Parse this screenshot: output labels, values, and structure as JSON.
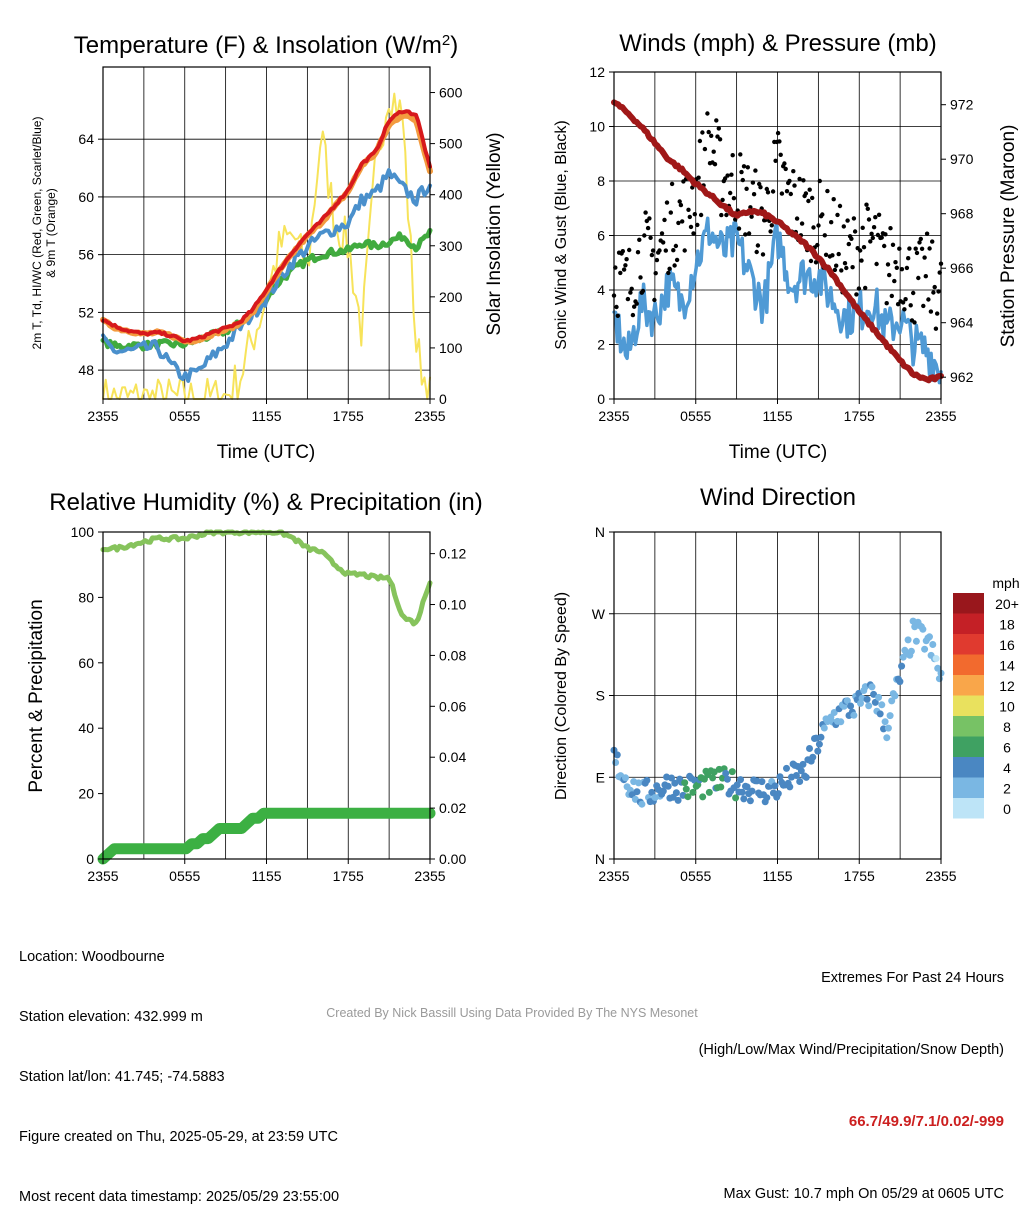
{
  "colors": {
    "temp_red": "#d7191c",
    "dew_green": "#41ab3f",
    "hiwc_scarlet": "#ef6a2b",
    "hiwc_blue": "#4a90cc",
    "temp9m_orange": "#f39b3f",
    "insolation_yellow": "#f7e35a",
    "wind_blue": "#4f9ad5",
    "gust_black": "#000000",
    "pressure_maroon": "#a01818",
    "rh_green": "#86c35c",
    "precip_green": "#3cb043",
    "grid": "#000000",
    "extremes_red": "#cc1f1f"
  },
  "time_ticks": [
    "2355",
    "0555",
    "1155",
    "1755",
    "2355"
  ],
  "panels": {
    "temp": {
      "title": "Temperature (F) & Insolation (W/m²)",
      "ylabel_line1": "2m T, Td, HI/WC (Red, Green, Scarlet/Blue)",
      "ylabel_line2": "& 9m T (Orange)",
      "y2label": "Solar Insolation (Yellow)",
      "xlabel": "Time (UTC)",
      "yticks": [
        "48",
        "52",
        "56",
        "60",
        "64"
      ],
      "y2ticks": [
        "0",
        "100",
        "200",
        "300",
        "400",
        "500",
        "600"
      ]
    },
    "wind": {
      "title": "Winds (mph) & Pressure (mb)",
      "ylabel": "Sonic Wind & Gust (Blue, Black)",
      "y2label": "Station Pressure (Maroon)",
      "xlabel": "Time (UTC)",
      "yticks": [
        "0",
        "2",
        "4",
        "6",
        "8",
        "10",
        "12"
      ],
      "y2ticks": [
        "962",
        "964",
        "966",
        "968",
        "970",
        "972"
      ]
    },
    "rh": {
      "title": "Relative Humidity (%) & Precipitation (in)",
      "ylabel": "Percent & Precipitation",
      "yticks": [
        "0",
        "20",
        "40",
        "60",
        "80",
        "100"
      ],
      "y2ticks": [
        "0.00",
        "0.02",
        "0.04",
        "0.06",
        "0.08",
        "0.10",
        "0.12"
      ]
    },
    "dir": {
      "title": "Wind Direction",
      "ylabel": "Direction (Colored By Speed)",
      "yticks": [
        "N",
        "E",
        "S",
        "W",
        "N"
      ],
      "legend_title": "mph",
      "legend_labels": [
        "20+",
        "18",
        "16",
        "14",
        "12",
        "10",
        "8",
        "6",
        "4",
        "2",
        "0"
      ],
      "legend_colors": [
        "#99171c",
        "#c42026",
        "#e03a2f",
        "#f26a2e",
        "#f9a64a",
        "#e9e15e",
        "#77c265",
        "#3fa162",
        "#4a87c2",
        "#7ab7e3",
        "#bde4f7"
      ]
    }
  },
  "info": {
    "location": "Location: Woodbourne",
    "elevation": "Station elevation: 432.999 m",
    "latlon": "Station lat/lon: 41.745; -74.5883",
    "created": "Figure created on Thu, 2025-05-29, at 23:59 UTC",
    "recent": "Most recent data timestamp: 2025/05/29 23:55:00"
  },
  "extremes": {
    "title": "Extremes For Past 24 Hours",
    "subtitle": "(High/Low/Max Wind/Precipitation/Snow Depth)",
    "values": "66.7/49.9/7.1/0.02/-999",
    "gust": "Max Gust: 10.7 mph On 05/29 at 0605 UTC"
  },
  "credit": "Created By Nick Bassill Using Data Provided By The NYS Mesonet",
  "chart_data": [
    {
      "type": "line",
      "title": "Temperature (F) & Insolation (W/m²)",
      "xlabel": "Time (UTC)",
      "ylabel": "2m T, Td, HI/WC (Red, Green, Scarlet/Blue) & 9m T (Orange)",
      "y2label": "Solar Insolation (Yellow)",
      "x": [
        "2355",
        "0055",
        "0155",
        "0255",
        "0355",
        "0455",
        "0555",
        "0655",
        "0755",
        "0855",
        "0955",
        "1055",
        "1155",
        "1255",
        "1355",
        "1455",
        "1555",
        "1655",
        "1755",
        "1855",
        "1955",
        "2055",
        "2155",
        "2255",
        "2355"
      ],
      "ylim": [
        46,
        69
      ],
      "y2lim": [
        0,
        650
      ],
      "series": [
        {
          "name": "2m T (Red)",
          "axis": "left",
          "values": [
            51.5,
            51.0,
            50.7,
            50.5,
            50.6,
            50.4,
            50.0,
            50.2,
            50.6,
            50.9,
            51.3,
            52.2,
            53.6,
            55.0,
            56.3,
            57.4,
            58.3,
            59.4,
            60.5,
            62.3,
            63.1,
            65.3,
            66.0,
            65.7,
            62.0
          ]
        },
        {
          "name": "2m Td (Green)",
          "axis": "left",
          "values": [
            50.0,
            49.6,
            49.7,
            49.7,
            49.8,
            49.8,
            49.8,
            50.1,
            50.4,
            50.7,
            51.2,
            52.0,
            53.0,
            54.2,
            55.0,
            55.6,
            56.0,
            56.2,
            56.3,
            56.8,
            56.6,
            56.9,
            57.3,
            56.5,
            57.5
          ]
        },
        {
          "name": "HI/WC (Blue)",
          "axis": "left",
          "values": [
            50.0,
            49.3,
            49.3,
            49.5,
            49.6,
            48.3,
            47.5,
            47.9,
            48.9,
            49.8,
            50.9,
            51.9,
            53.0,
            54.4,
            55.6,
            56.5,
            57.3,
            57.8,
            58.2,
            59.8,
            60.3,
            61.6,
            60.6,
            59.8,
            61.0
          ]
        },
        {
          "name": "9m T (Orange)",
          "axis": "left",
          "values": [
            51.4,
            50.9,
            50.7,
            50.5,
            50.6,
            50.4,
            50.0,
            50.1,
            50.5,
            50.8,
            51.2,
            52.0,
            53.5,
            54.9,
            56.2,
            57.3,
            58.2,
            59.3,
            60.4,
            62.2,
            63.0,
            65.0,
            65.7,
            65.3,
            61.8
          ]
        },
        {
          "name": "Solar Insolation (Yellow)",
          "axis": "right",
          "values": [
            0,
            0,
            0,
            0,
            0,
            0,
            0,
            0,
            0,
            5,
            40,
            120,
            200,
            300,
            320,
            250,
            520,
            350,
            300,
            130,
            450,
            610,
            550,
            100,
            5
          ]
        }
      ]
    },
    {
      "type": "line",
      "title": "Winds (mph) & Pressure (mb)",
      "xlabel": "Time (UTC)",
      "ylabel": "Sonic Wind & Gust (Blue, Black)",
      "y2label": "Station Pressure (Maroon)",
      "x": [
        "2355",
        "0055",
        "0155",
        "0255",
        "0355",
        "0455",
        "0555",
        "0655",
        "0755",
        "0855",
        "0955",
        "1055",
        "1155",
        "1255",
        "1355",
        "1455",
        "1555",
        "1655",
        "1755",
        "1855",
        "1955",
        "2055",
        "2155",
        "2255",
        "2355"
      ],
      "ylim": [
        0,
        12
      ],
      "y2lim": [
        961.2,
        973.2
      ],
      "series": [
        {
          "name": "Sonic Wind (Blue)",
          "axis": "left",
          "values": [
            3.0,
            1.5,
            3.5,
            3.0,
            4.2,
            3.5,
            5.0,
            6.2,
            5.4,
            5.8,
            4.5,
            3.4,
            6.0,
            4.2,
            4.6,
            4.5,
            3.7,
            3.0,
            3.2,
            3.6,
            2.5,
            3.0,
            2.0,
            1.8,
            1.0
          ]
        },
        {
          "name": "Gust (Black)",
          "axis": "left",
          "values": [
            4.8,
            4.0,
            5.5,
            5.0,
            6.2,
            6.8,
            7.5,
            9.5,
            8.0,
            7.8,
            7.2,
            6.5,
            8.5,
            7.2,
            6.8,
            6.5,
            6.0,
            5.2,
            5.5,
            5.8,
            4.8,
            5.0,
            4.2,
            4.5,
            3.8
          ]
        },
        {
          "name": "Station Pressure (Maroon)",
          "axis": "right",
          "values": [
            972.1,
            971.7,
            971.2,
            970.6,
            970.0,
            969.6,
            969.1,
            968.7,
            968.3,
            967.9,
            968.1,
            968.0,
            967.7,
            967.3,
            966.9,
            966.4,
            965.8,
            965.1,
            964.4,
            963.8,
            963.2,
            962.6,
            962.1,
            961.9,
            962.0
          ]
        }
      ]
    },
    {
      "type": "line",
      "title": "Relative Humidity (%) & Precipitation (in)",
      "ylabel": "Percent & Precipitation",
      "x": [
        "2355",
        "0055",
        "0155",
        "0255",
        "0355",
        "0455",
        "0555",
        "0655",
        "0755",
        "0855",
        "0955",
        "1055",
        "1155",
        "1255",
        "1355",
        "1455",
        "1555",
        "1655",
        "1755",
        "1855",
        "1955",
        "2055",
        "2155",
        "2255",
        "2355"
      ],
      "ylim": [
        0,
        100
      ],
      "y2lim": [
        0,
        0.13
      ],
      "series": [
        {
          "name": "Relative Humidity",
          "axis": "left",
          "values": [
            95,
            95,
            96,
            97,
            98,
            98,
            98,
            99,
            100,
            100,
            100,
            100,
            100,
            100,
            98,
            95,
            94,
            90,
            87,
            87,
            86,
            86,
            74,
            72,
            85
          ]
        },
        {
          "name": "Precipitation",
          "axis": "right",
          "values": [
            0.0,
            0.004,
            0.004,
            0.004,
            0.004,
            0.004,
            0.004,
            0.006,
            0.01,
            0.012,
            0.012,
            0.016,
            0.018,
            0.018,
            0.018,
            0.018,
            0.018,
            0.018,
            0.018,
            0.018,
            0.018,
            0.018,
            0.018,
            0.018,
            0.018
          ]
        }
      ]
    },
    {
      "type": "scatter",
      "title": "Wind Direction",
      "ylabel": "Direction (Colored By Speed)",
      "y_categories": [
        "N",
        "E",
        "S",
        "W",
        "N"
      ],
      "ylim": [
        0,
        360
      ],
      "colorbar": {
        "title": "mph",
        "range": [
          0,
          20
        ]
      },
      "x": [
        "2355",
        "0055",
        "0155",
        "0255",
        "0355",
        "0455",
        "0555",
        "0655",
        "0755",
        "0855",
        "0955",
        "1055",
        "1155",
        "1255",
        "1355",
        "1455",
        "1555",
        "1655",
        "1755",
        "1855",
        "1955",
        "2055",
        "2155",
        "2255",
        "2355"
      ],
      "direction_deg": [
        110,
        85,
        70,
        75,
        82,
        78,
        80,
        83,
        85,
        82,
        78,
        75,
        78,
        90,
        95,
        130,
        155,
        165,
        170,
        185,
        145,
        200,
        250,
        240,
        200
      ],
      "speed_mph": [
        3,
        2,
        3,
        3,
        4,
        4,
        5,
        6,
        5,
        5,
        4,
        3,
        4,
        4,
        4,
        4,
        3,
        3,
        3,
        3,
        2,
        3,
        2,
        2,
        1
      ]
    }
  ]
}
